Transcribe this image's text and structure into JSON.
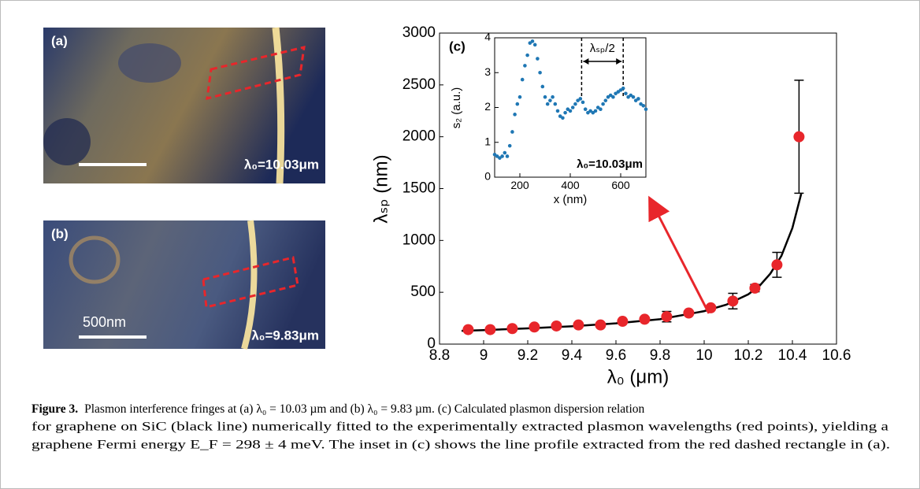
{
  "panels": {
    "a": {
      "label": "(a)",
      "wavelength": "λ₀=10.03μm"
    },
    "b": {
      "label": "(b)",
      "scale_bar": "500nm",
      "wavelength": "λ₀=9.83μm"
    }
  },
  "chart_data": [
    {
      "type": "scatter",
      "panel_label": "(c)",
      "xlabel": "λ₀ (μm)",
      "ylabel": "λₛₚ (nm)",
      "xlim": [
        8.8,
        10.6
      ],
      "ylim": [
        0,
        3000
      ],
      "xticks": [
        8.8,
        9,
        9.2,
        9.4,
        9.6,
        9.8,
        10,
        10.2,
        10.4,
        10.6
      ],
      "yticks": [
        0,
        500,
        1000,
        1500,
        2000,
        2500,
        3000
      ],
      "points": {
        "color": "#e8262b",
        "x": [
          8.93,
          9.03,
          9.13,
          9.23,
          9.33,
          9.43,
          9.53,
          9.63,
          9.73,
          9.83,
          9.93,
          10.03,
          10.13,
          10.23,
          10.33,
          10.43
        ],
        "y": [
          140,
          140,
          150,
          165,
          175,
          185,
          185,
          220,
          240,
          265,
          300,
          350,
          415,
          540,
          765,
          2000
        ],
        "errors": [
          10,
          10,
          10,
          10,
          10,
          10,
          10,
          15,
          15,
          50,
          15,
          15,
          75,
          35,
          120,
          545
        ]
      },
      "fit_line": {
        "color": "#000000",
        "x": [
          8.9,
          9.0,
          9.2,
          9.4,
          9.6,
          9.8,
          10.0,
          10.1,
          10.2,
          10.25,
          10.3,
          10.35,
          10.4,
          10.44
        ],
        "y": [
          128,
          135,
          152,
          172,
          200,
          240,
          318,
          380,
          480,
          560,
          680,
          850,
          1120,
          1450
        ]
      }
    },
    {
      "type": "scatter",
      "xlabel": "x (nm)",
      "ylabel": "s₂ (a.u.)",
      "annotation": "λ₀=10.03μm",
      "period_label": "λₛₚ/2",
      "markers": [
        445,
        610
      ],
      "xlim": [
        100,
        700
      ],
      "ylim": [
        0,
        4
      ],
      "xticks": [
        200,
        400,
        600
      ],
      "yticks": [
        0,
        1,
        2,
        3,
        4
      ],
      "color": "#1f77b4",
      "x": [
        100,
        110,
        120,
        130,
        140,
        150,
        160,
        170,
        180,
        190,
        200,
        210,
        220,
        230,
        240,
        250,
        260,
        270,
        280,
        290,
        300,
        310,
        320,
        330,
        340,
        350,
        360,
        370,
        380,
        390,
        400,
        410,
        420,
        430,
        440,
        450,
        460,
        470,
        480,
        490,
        500,
        510,
        520,
        530,
        540,
        550,
        560,
        570,
        580,
        590,
        600,
        610,
        620,
        630,
        640,
        650,
        660,
        670,
        680,
        690,
        700
      ],
      "y": [
        0.65,
        0.6,
        0.55,
        0.6,
        0.7,
        0.6,
        0.9,
        1.3,
        1.8,
        2.1,
        2.3,
        2.8,
        3.2,
        3.5,
        3.85,
        3.9,
        3.8,
        3.4,
        3.0,
        2.6,
        2.3,
        2.1,
        2.2,
        2.3,
        2.1,
        1.9,
        1.75,
        1.7,
        1.85,
        1.95,
        1.9,
        2.0,
        2.1,
        2.2,
        2.25,
        2.15,
        1.95,
        1.85,
        1.9,
        1.85,
        1.9,
        2.0,
        1.95,
        2.1,
        2.2,
        2.3,
        2.35,
        2.3,
        2.4,
        2.45,
        2.5,
        2.55,
        2.4,
        2.3,
        2.35,
        2.3,
        2.2,
        2.25,
        2.1,
        2.05,
        1.95
      ]
    }
  ],
  "caption": {
    "label": "Figure 3.",
    "lines": [
      "Plasmon interference fringes at (a) λ₀ = 10.03 µm and (b) λ₀ = 9.83 µm. (c) Calculated plasmon dispersion relation",
      "for graphene on SiC (black line) numerically fitted to the experimentally extracted plasmon wavelengths (red points), yielding a",
      "graphene Fermi energy E_F = 298 ± 4 meV. The inset in (c) shows the line profile extracted from the red dashed rectangle in (a)."
    ]
  }
}
